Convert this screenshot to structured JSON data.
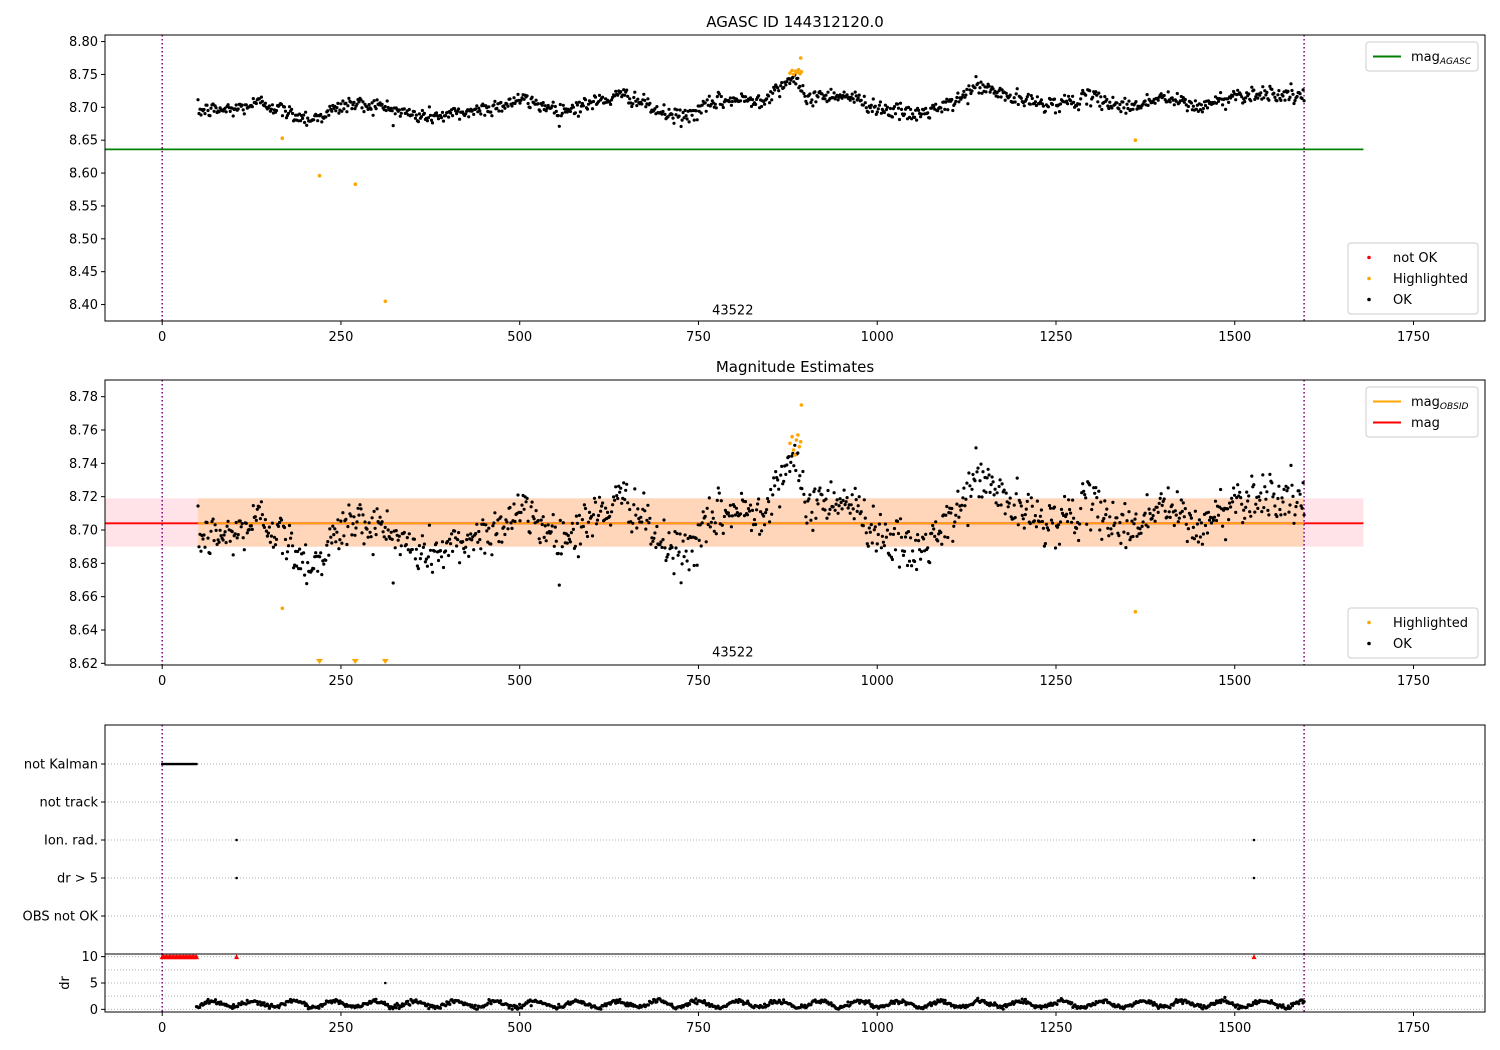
{
  "chart_data": [
    {
      "type": "scatter",
      "title": "AGASC ID 144312120.0",
      "xlim": [
        -80,
        1850
      ],
      "ylim": [
        8.375,
        8.81
      ],
      "xticks": [
        0,
        250,
        500,
        750,
        1000,
        1250,
        1500,
        1750
      ],
      "yticks": [
        8.4,
        8.45,
        8.5,
        8.55,
        8.6,
        8.65,
        8.7,
        8.75,
        8.8
      ],
      "ytick_format": "fixed2",
      "vlines": [
        0,
        1597
      ],
      "vline_color": "#800080",
      "hlines": [
        {
          "name": "mag_AGASC",
          "y": 8.636,
          "x0": -80,
          "x1": 1680,
          "color": "#008000"
        }
      ],
      "band": null,
      "annotation": {
        "text": "43522",
        "x": 798,
        "y": 8.385
      },
      "legend_top": {
        "position": "top-right",
        "entries": [
          {
            "label": "mag",
            "sub": "AGASC",
            "style": "line",
            "color": "#008000"
          }
        ]
      },
      "legend_bottom": {
        "position": "lower-right",
        "entries": [
          {
            "label": "not OK",
            "style": "dot",
            "color": "#ff0000"
          },
          {
            "label": "Highlighted",
            "style": "dot",
            "color": "#ffa500"
          },
          {
            "label": "OK",
            "style": "dot",
            "color": "#000000"
          }
        ]
      },
      "series": [
        {
          "name": "OK",
          "color": "#000000",
          "x_start": 50,
          "x_end": 1597,
          "n": 1100,
          "trend": [
            [
              50,
              8.695
            ],
            [
              100,
              8.697
            ],
            [
              140,
              8.708
            ],
            [
              180,
              8.69
            ],
            [
              210,
              8.682
            ],
            [
              260,
              8.705
            ],
            [
              300,
              8.703
            ],
            [
              360,
              8.686
            ],
            [
              400,
              8.688
            ],
            [
              470,
              8.702
            ],
            [
              500,
              8.712
            ],
            [
              560,
              8.695
            ],
            [
              620,
              8.712
            ],
            [
              650,
              8.719
            ],
            [
              700,
              8.69
            ],
            [
              730,
              8.685
            ],
            [
              780,
              8.71
            ],
            [
              840,
              8.712
            ],
            [
              880,
              8.745
            ],
            [
              900,
              8.715
            ],
            [
              950,
              8.72
            ],
            [
              1000,
              8.7
            ],
            [
              1050,
              8.688
            ],
            [
              1100,
              8.702
            ],
            [
              1140,
              8.733
            ],
            [
              1200,
              8.71
            ],
            [
              1250,
              8.705
            ],
            [
              1300,
              8.715
            ],
            [
              1350,
              8.7
            ],
            [
              1400,
              8.715
            ],
            [
              1450,
              8.7
            ],
            [
              1500,
              8.718
            ],
            [
              1550,
              8.722
            ],
            [
              1597,
              8.715
            ]
          ],
          "noise": 0.006
        },
        {
          "name": "Highlighted",
          "color": "#ffa500",
          "points": [
            [
              168,
              8.653
            ],
            [
              220,
              8.596
            ],
            [
              270,
              8.583
            ],
            [
              312,
              8.405
            ],
            [
              1361,
              8.65
            ],
            [
              878,
              8.752
            ],
            [
              881,
              8.756
            ],
            [
              883,
              8.75
            ],
            [
              886,
              8.755
            ],
            [
              888,
              8.753
            ],
            [
              890,
              8.757
            ],
            [
              892,
              8.751
            ],
            [
              894,
              8.754
            ],
            [
              893,
              8.775
            ]
          ]
        }
      ]
    },
    {
      "type": "scatter",
      "title": "Magnitude Estimates",
      "xlim": [
        -80,
        1850
      ],
      "ylim": [
        8.619,
        8.79
      ],
      "xticks": [
        0,
        250,
        500,
        750,
        1000,
        1250,
        1500,
        1750
      ],
      "yticks": [
        8.62,
        8.64,
        8.66,
        8.68,
        8.7,
        8.72,
        8.74,
        8.76,
        8.78
      ],
      "ytick_format": "fixed2",
      "vlines": [
        0,
        1597
      ],
      "vline_color": "#800080",
      "hlines": [
        {
          "name": "mag",
          "y": 8.704,
          "x0": -80,
          "x1": 1680,
          "color": "#ff0000"
        }
      ],
      "band": {
        "y0": 8.69,
        "y1": 8.719,
        "x0": -80,
        "x1": 1680,
        "color": "#ffc0cb",
        "inner_x0": 50,
        "inner_x1": 1597,
        "inner_color": "#ffa500"
      },
      "annotation": {
        "text": "43522",
        "x": 798,
        "y": 8.624
      },
      "legend_top": {
        "position": "top-right",
        "entries": [
          {
            "label": "mag",
            "sub": "OBSID",
            "style": "line",
            "color": "#ffa500"
          },
          {
            "label": "mag",
            "style": "line",
            "color": "#ff0000"
          }
        ]
      },
      "legend_bottom": {
        "position": "lower-right",
        "entries": [
          {
            "label": "Highlighted",
            "style": "dot",
            "color": "#ffa500"
          },
          {
            "label": "OK",
            "style": "dot",
            "color": "#000000"
          }
        ]
      },
      "series": [
        {
          "name": "OK",
          "color": "#000000",
          "x_start": 50,
          "x_end": 1597,
          "n": 1100,
          "trend": [
            [
              50,
              8.695
            ],
            [
              100,
              8.697
            ],
            [
              140,
              8.708
            ],
            [
              180,
              8.69
            ],
            [
              210,
              8.678
            ],
            [
              260,
              8.705
            ],
            [
              300,
              8.703
            ],
            [
              360,
              8.686
            ],
            [
              400,
              8.688
            ],
            [
              470,
              8.702
            ],
            [
              500,
              8.712
            ],
            [
              560,
              8.695
            ],
            [
              620,
              8.712
            ],
            [
              650,
              8.719
            ],
            [
              700,
              8.69
            ],
            [
              730,
              8.685
            ],
            [
              780,
              8.71
            ],
            [
              840,
              8.712
            ],
            [
              880,
              8.745
            ],
            [
              900,
              8.715
            ],
            [
              950,
              8.72
            ],
            [
              1000,
              8.7
            ],
            [
              1050,
              8.685
            ],
            [
              1100,
              8.702
            ],
            [
              1140,
              8.733
            ],
            [
              1200,
              8.71
            ],
            [
              1250,
              8.705
            ],
            [
              1300,
              8.715
            ],
            [
              1350,
              8.7
            ],
            [
              1400,
              8.715
            ],
            [
              1450,
              8.7
            ],
            [
              1500,
              8.718
            ],
            [
              1550,
              8.722
            ],
            [
              1597,
              8.715
            ]
          ],
          "noise": 0.007
        },
        {
          "name": "Highlighted",
          "color": "#ffa500",
          "points": [
            [
              168,
              8.653
            ],
            [
              1361,
              8.651
            ],
            [
              878,
              8.752
            ],
            [
              881,
              8.756
            ],
            [
              883,
              8.748
            ],
            [
              885,
              8.745
            ],
            [
              887,
              8.754
            ],
            [
              889,
              8.757
            ],
            [
              891,
              8.75
            ],
            [
              893,
              8.753
            ],
            [
              894,
              8.775
            ]
          ]
        },
        {
          "name": "Highlighted (below axis)",
          "color": "#ffa500",
          "marker": "triangle-down",
          "points": [
            [
              220,
              8.621
            ],
            [
              270,
              8.621
            ],
            [
              312,
              8.621
            ]
          ]
        }
      ]
    },
    {
      "type": "scatter",
      "title": "",
      "xlim": [
        -80,
        1850
      ],
      "categories": [
        "not Kalman",
        "not track",
        "Ion. rad.",
        "dr > 5",
        "OBS not OK"
      ],
      "vlines": [
        0,
        1597
      ],
      "vline_color": "#800080",
      "flags": [
        {
          "category": "not Kalman",
          "x_start": 0,
          "x_end": 48,
          "n": 25
        },
        {
          "category": "Ion. rad.",
          "x": [
            104,
            1527
          ]
        },
        {
          "category": "dr > 5",
          "x": [
            104,
            1527
          ]
        }
      ]
    },
    {
      "type": "scatter",
      "title": "",
      "ylabel": "dr",
      "xlim": [
        -80,
        1850
      ],
      "ylim": [
        -0.5,
        10.5
      ],
      "xticks": [
        0,
        250,
        500,
        750,
        1000,
        1250,
        1500,
        1750
      ],
      "yticks": [
        0,
        5,
        10
      ],
      "ytick_format": "int",
      "vlines": [
        0,
        1597
      ],
      "vline_color": "#800080",
      "capped": {
        "color": "#ff0000",
        "y": 10,
        "x_start": 0,
        "x_end": 48,
        "n": 25,
        "extra_x": [
          104,
          1527
        ]
      },
      "series": [
        {
          "name": "dr",
          "color": "#000000",
          "x_start": 48,
          "x_end": 1597,
          "n": 1050,
          "base": 1.0,
          "noise": 0.45,
          "outlier": [
            312,
            5.0
          ]
        }
      ]
    }
  ]
}
